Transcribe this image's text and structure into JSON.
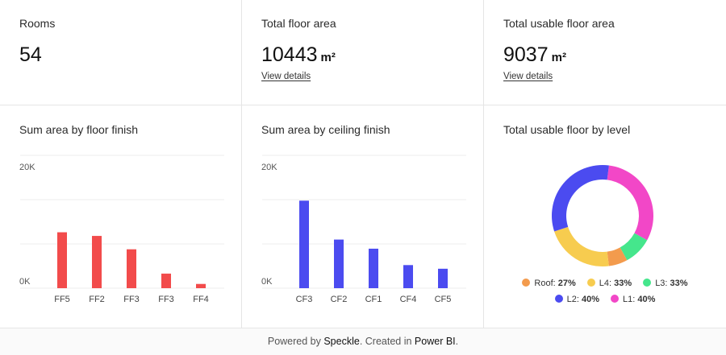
{
  "kpis": {
    "rooms": {
      "label": "Rooms",
      "value": "54"
    },
    "total_floor": {
      "label": "Total floor area",
      "value": "10443",
      "unit": "m²",
      "link": "View details"
    },
    "usable_floor": {
      "label": "Total usable floor area",
      "value": "9037",
      "unit": "m²",
      "link": "View details"
    }
  },
  "chart_data": [
    {
      "type": "bar",
      "title": "Sum area by floor finish",
      "categories": [
        "FF5",
        "FF2",
        "FF3",
        "FF3",
        "FF4"
      ],
      "values": [
        9200,
        8600,
        6400,
        2400,
        700
      ],
      "ylim": [
        0,
        20000
      ],
      "yticks": [
        "0K",
        "20K"
      ],
      "color": "#f24b4b"
    },
    {
      "type": "bar",
      "title": "Sum area by ceiling finish",
      "categories": [
        "CF3",
        "CF2",
        "CF1",
        "CF4",
        "CF5"
      ],
      "values": [
        14400,
        8000,
        6500,
        3800,
        3200
      ],
      "ylim": [
        0,
        20000
      ],
      "yticks": [
        "0K",
        "20K"
      ],
      "color": "#4b4bf0"
    },
    {
      "type": "pie",
      "title": "Total usable floor by level",
      "slices": [
        {
          "name": "Roof",
          "pct": "27%",
          "value": 6,
          "color": "#f39b4d"
        },
        {
          "name": "L4",
          "pct": "33%",
          "value": 22,
          "color": "#f7cc4f"
        },
        {
          "name": "L3",
          "pct": "33%",
          "value": 9,
          "color": "#45e68c"
        },
        {
          "name": "L2",
          "pct": "40%",
          "value": 32,
          "color": "#4b4bf0"
        },
        {
          "name": "L1",
          "pct": "40%",
          "value": 31,
          "color": "#f247c7"
        }
      ]
    }
  ],
  "footer": {
    "prefix": "Powered by ",
    "brand1": "Speckle",
    "middle": ". Created in ",
    "brand2": "Power BI",
    "suffix": "."
  }
}
